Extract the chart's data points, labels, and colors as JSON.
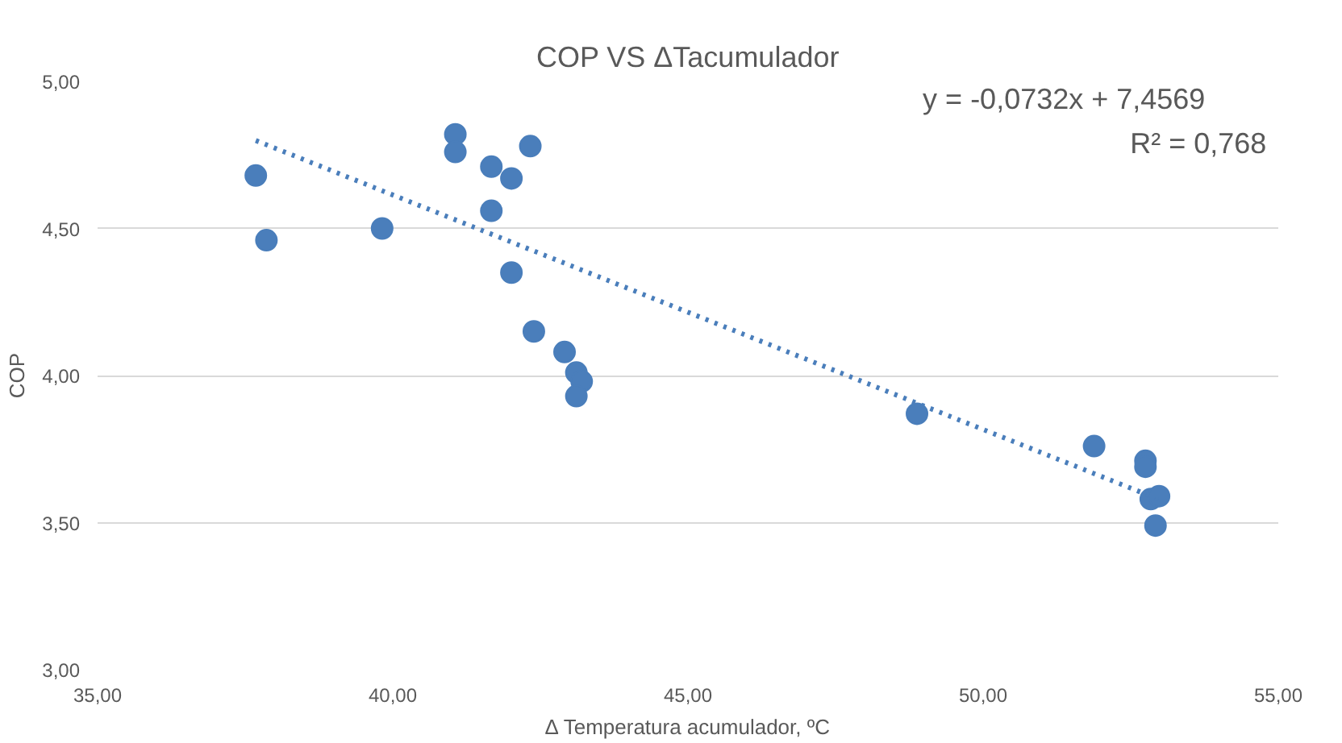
{
  "chart_data": {
    "type": "scatter",
    "title": "COP VS ΔTacumulador",
    "xlabel": "Δ Temperatura acumulador, ºC",
    "ylabel": "COP",
    "xlim": [
      35,
      55
    ],
    "ylim": [
      3,
      5
    ],
    "xticks": [
      {
        "value": 35,
        "label": "35,00"
      },
      {
        "value": 40,
        "label": "40,00"
      },
      {
        "value": 45,
        "label": "45,00"
      },
      {
        "value": 50,
        "label": "50,00"
      },
      {
        "value": 55,
        "label": "55,00"
      }
    ],
    "yticks": [
      {
        "value": 3,
        "label": "3,00"
      },
      {
        "value": 3.5,
        "label": "3,50"
      },
      {
        "value": 4,
        "label": "4,00"
      },
      {
        "value": 4.5,
        "label": "4,50"
      },
      {
        "value": 5,
        "label": "5,00"
      }
    ],
    "grid": "y",
    "marker": "circle",
    "annotations": [
      "y = -0,0732x + 7,4569",
      "R² = 0,768"
    ],
    "series": [
      {
        "color": "#4a7ebb",
        "x": [
          37.68,
          37.86,
          39.82,
          41.06,
          41.06,
          41.67,
          41.67,
          42.01,
          42.33,
          42.01,
          42.39,
          42.91,
          43.11,
          43.2,
          43.11,
          48.88,
          51.88,
          52.75,
          52.75,
          52.84,
          52.98,
          52.92
        ],
        "values": [
          4.68,
          4.46,
          4.5,
          4.82,
          4.76,
          4.71,
          4.56,
          4.67,
          4.78,
          4.35,
          4.15,
          4.08,
          4.01,
          3.98,
          3.93,
          3.87,
          3.76,
          3.71,
          3.69,
          3.58,
          3.59,
          3.49
        ]
      },
      {
        "type": "line",
        "marker": "none",
        "color": "#4a7ebb",
        "line_style": "dotted",
        "x": [
          37.68,
          52.98
        ],
        "values": [
          4.799,
          3.579
        ]
      }
    ]
  }
}
